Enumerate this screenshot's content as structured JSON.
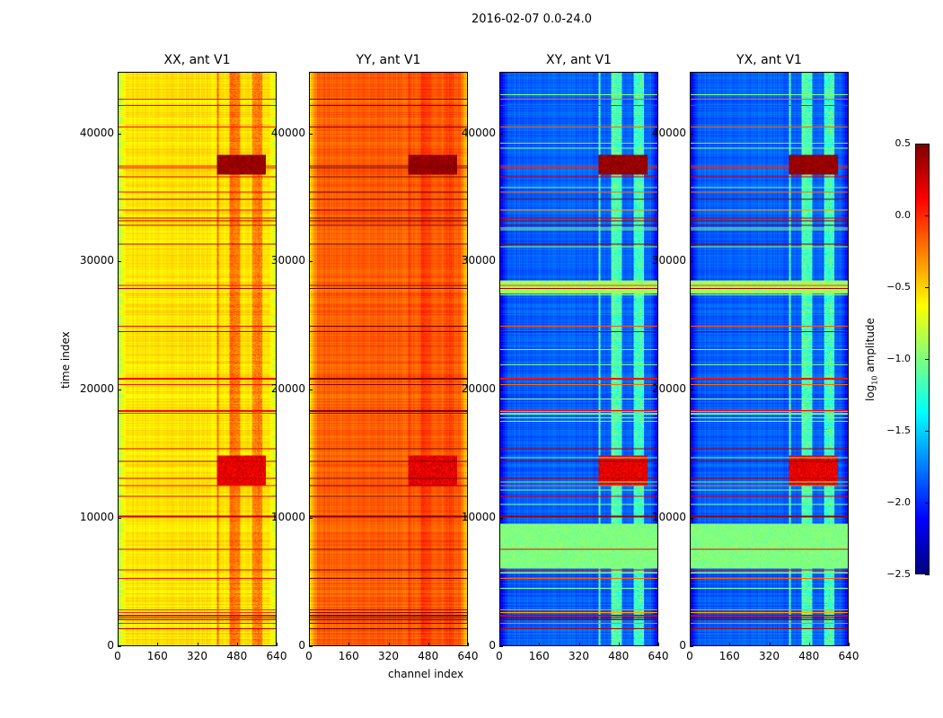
{
  "chart_data": {
    "type": "heatmap",
    "suptitle": "2016-02-07 0.0-24.0",
    "xlabel": "channel index",
    "ylabel": "time index",
    "xlim": [
      0,
      640
    ],
    "ylim": [
      0,
      44800
    ],
    "xticks": [
      0,
      160,
      320,
      480,
      640
    ],
    "yticks": [
      0,
      10000,
      20000,
      30000,
      40000
    ],
    "colorbar": {
      "label": "log10 amplitude",
      "label_main": "log",
      "label_sub": "10",
      "label_rest": " amplitude",
      "colormap": "jet",
      "range": [
        -2.5,
        0.5
      ],
      "ticks": [
        "0.5",
        "0.0",
        "−0.5",
        "−1.0",
        "−1.5",
        "−2.0",
        "−2.5"
      ],
      "tick_values": [
        0.5,
        0.0,
        -0.5,
        -1.0,
        -1.5,
        -2.0,
        -2.5
      ]
    },
    "rfi_channel_range": [
      400,
      600
    ],
    "panels": [
      {
        "title": "XX, ant V1",
        "background": -0.55,
        "rfi_band_boost": 0.35,
        "edge_drop": 0.25
      },
      {
        "title": "YY, ant V1",
        "background": -0.15,
        "rfi_band_boost": 0.1,
        "edge_drop": 0.35
      },
      {
        "title": "XY, ant V1",
        "background": -1.85,
        "rfi_band_boost": 0.75,
        "edge_drop": 0.3
      },
      {
        "title": "YX, ant V1",
        "background": -1.85,
        "rfi_band_boost": 0.75,
        "edge_drop": 0.3
      }
    ],
    "features": [
      {
        "time_range": [
          36800,
          38300
        ],
        "description_value": 0.45,
        "band_only": true
      },
      {
        "time_range": [
          12500,
          14800
        ],
        "description_value": 0.2,
        "band_only": true
      },
      {
        "time_range": [
          6000,
          9500
        ],
        "description_value": -1.0,
        "band_only": false
      },
      {
        "time_range": [
          27500,
          28500
        ],
        "description_value": -0.9,
        "band_only": false
      }
    ]
  }
}
